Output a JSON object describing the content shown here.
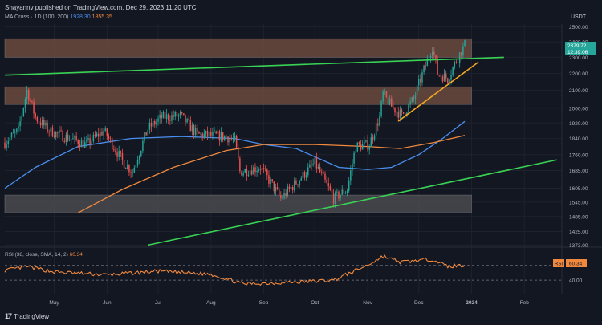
{
  "header": {
    "publisher": "Shayannv published on TradingView.com, Dec 29, 2023 11:20 UTC"
  },
  "legend": {
    "indicator": "MA Cross · 1D (100, 200)",
    "ma100_value": "1928.30",
    "ma200_value": "1855.35",
    "quote_currency": "USDT"
  },
  "rsi_legend": {
    "label": "RSI (38, close, SMA, 14, 2)",
    "value": "60.34"
  },
  "price_badge": {
    "price": "2379.72",
    "countdown": "12:39:06"
  },
  "rsi_badge": {
    "label": "RSI",
    "value": "60.34"
  },
  "footer": {
    "brand": "TradingView"
  },
  "colors": {
    "background": "#131722",
    "up_candle": "#26a69a",
    "down_candle": "#ef5350",
    "ma100": "#4a8ff0",
    "ma200": "#f0883e",
    "rsi": "#f0883e",
    "supply_zone": "#6b4a3e",
    "demand_zone": "#4a4a4f",
    "trendline_green": "#39d353",
    "trendline_orange": "#f5a623"
  },
  "chart_data": {
    "type": "candlestick",
    "symbol_timeframe": "1D",
    "x_axis_labels": [
      "May",
      "Jun",
      "Jul",
      "Aug",
      "Sep",
      "Oct",
      "Nov",
      "Dec",
      "2024",
      "Feb"
    ],
    "x_axis_dates": [
      "2023-05-01",
      "2023-06-01",
      "2023-07-01",
      "2023-08-01",
      "2023-09-01",
      "2023-10-01",
      "2023-11-01",
      "2023-12-01",
      "2024-01-01",
      "2024-02-01"
    ],
    "x_range": [
      "2023-04-02",
      "2024-02-23"
    ],
    "y_ticks": [
      2500.0,
      2400.0,
      2300.0,
      2200.0,
      2100.0,
      2000.0,
      1920.0,
      1840.0,
      1760.0,
      1685.0,
      1605.0,
      1545.0,
      1485.0,
      1425.0,
      1373.0
    ],
    "y_scale": "log",
    "ylim": [
      1365,
      2520
    ],
    "rsi_levels": [
      60.0,
      40.0
    ],
    "rsi_ylim": [
      22,
      84
    ],
    "price_anchors": [
      {
        "date": "2023-04-02",
        "price": 1820
      },
      {
        "date": "2023-04-10",
        "price": 1880
      },
      {
        "date": "2023-04-15",
        "price": 2100
      },
      {
        "date": "2023-04-20",
        "price": 1950
      },
      {
        "date": "2023-04-28",
        "price": 1880
      },
      {
        "date": "2023-05-10",
        "price": 1840
      },
      {
        "date": "2023-05-20",
        "price": 1810
      },
      {
        "date": "2023-05-30",
        "price": 1880
      },
      {
        "date": "2023-06-10",
        "price": 1730
      },
      {
        "date": "2023-06-16",
        "price": 1680
      },
      {
        "date": "2023-06-25",
        "price": 1890
      },
      {
        "date": "2023-07-03",
        "price": 1950
      },
      {
        "date": "2023-07-14",
        "price": 1960
      },
      {
        "date": "2023-07-24",
        "price": 1860
      },
      {
        "date": "2023-08-10",
        "price": 1850
      },
      {
        "date": "2023-08-15",
        "price": 1830
      },
      {
        "date": "2023-08-18",
        "price": 1680
      },
      {
        "date": "2023-08-30",
        "price": 1700
      },
      {
        "date": "2023-09-11",
        "price": 1560
      },
      {
        "date": "2023-09-20",
        "price": 1630
      },
      {
        "date": "2023-10-01",
        "price": 1720
      },
      {
        "date": "2023-10-12",
        "price": 1560
      },
      {
        "date": "2023-10-20",
        "price": 1600
      },
      {
        "date": "2023-10-25",
        "price": 1800
      },
      {
        "date": "2023-11-02",
        "price": 1810
      },
      {
        "date": "2023-11-08",
        "price": 1950
      },
      {
        "date": "2023-11-10",
        "price": 2080
      },
      {
        "date": "2023-11-15",
        "price": 2010
      },
      {
        "date": "2023-11-21",
        "price": 1960
      },
      {
        "date": "2023-11-28",
        "price": 2050
      },
      {
        "date": "2023-12-05",
        "price": 2250
      },
      {
        "date": "2023-12-09",
        "price": 2370
      },
      {
        "date": "2023-12-12",
        "price": 2200
      },
      {
        "date": "2023-12-18",
        "price": 2170
      },
      {
        "date": "2023-12-24",
        "price": 2300
      },
      {
        "date": "2023-12-28",
        "price": 2380
      }
    ],
    "ma100": [
      {
        "date": "2023-04-02",
        "value": 1605
      },
      {
        "date": "2023-04-20",
        "value": 1700
      },
      {
        "date": "2023-05-15",
        "value": 1800
      },
      {
        "date": "2023-06-15",
        "value": 1840
      },
      {
        "date": "2023-07-15",
        "value": 1850
      },
      {
        "date": "2023-08-15",
        "value": 1840
      },
      {
        "date": "2023-09-01",
        "value": 1810
      },
      {
        "date": "2023-09-20",
        "value": 1790
      },
      {
        "date": "2023-10-15",
        "value": 1700
      },
      {
        "date": "2023-11-01",
        "value": 1690
      },
      {
        "date": "2023-11-15",
        "value": 1700
      },
      {
        "date": "2023-12-01",
        "value": 1760
      },
      {
        "date": "2023-12-15",
        "value": 1840
      },
      {
        "date": "2023-12-28",
        "value": 1928.3
      }
    ],
    "ma200": [
      {
        "date": "2023-05-15",
        "value": 1500
      },
      {
        "date": "2023-06-10",
        "value": 1600
      },
      {
        "date": "2023-07-10",
        "value": 1700
      },
      {
        "date": "2023-08-10",
        "value": 1780
      },
      {
        "date": "2023-09-01",
        "value": 1810
      },
      {
        "date": "2023-10-01",
        "value": 1810
      },
      {
        "date": "2023-11-01",
        "value": 1800
      },
      {
        "date": "2023-11-20",
        "value": 1790
      },
      {
        "date": "2023-12-10",
        "value": 1820
      },
      {
        "date": "2023-12-28",
        "value": 1855.35
      }
    ],
    "rsi_anchors": [
      {
        "date": "2023-04-02",
        "value": 53
      },
      {
        "date": "2023-04-15",
        "value": 58
      },
      {
        "date": "2023-05-01",
        "value": 51
      },
      {
        "date": "2023-06-01",
        "value": 47
      },
      {
        "date": "2023-07-01",
        "value": 52
      },
      {
        "date": "2023-08-01",
        "value": 48
      },
      {
        "date": "2023-08-20",
        "value": 35
      },
      {
        "date": "2023-09-15",
        "value": 37
      },
      {
        "date": "2023-10-12",
        "value": 40
      },
      {
        "date": "2023-11-01",
        "value": 60
      },
      {
        "date": "2023-11-10",
        "value": 72
      },
      {
        "date": "2023-11-20",
        "value": 64
      },
      {
        "date": "2023-12-09",
        "value": 68
      },
      {
        "date": "2023-12-18",
        "value": 58
      },
      {
        "date": "2023-12-28",
        "value": 60.34
      }
    ],
    "zones": [
      {
        "name": "supply-zone-upper",
        "low": 2300,
        "high": 2420,
        "from": "2023-04-02",
        "to": "2024-01-01",
        "color": "#6b4a3e"
      },
      {
        "name": "supply-zone-lower",
        "low": 2020,
        "high": 2120,
        "from": "2023-04-02",
        "to": "2024-01-01",
        "color": "#6b4a3e"
      },
      {
        "name": "demand-zone",
        "low": 1500,
        "high": 1575,
        "from": "2023-04-02",
        "to": "2024-01-01",
        "color": "#4a4a4f"
      }
    ],
    "trendlines": [
      {
        "name": "upper-green-trendline",
        "color": "#39d353",
        "points": [
          {
            "date": "2023-04-02",
            "price": 2190
          },
          {
            "date": "2024-01-20",
            "price": 2300
          }
        ]
      },
      {
        "name": "lower-green-trendline",
        "color": "#39d353",
        "points": [
          {
            "date": "2023-06-25",
            "price": 1373
          },
          {
            "date": "2024-02-20",
            "price": 1735
          }
        ]
      },
      {
        "name": "orange-support-line",
        "color": "#f5a623",
        "points": [
          {
            "date": "2023-11-19",
            "price": 1930
          },
          {
            "date": "2024-01-05",
            "price": 2270
          }
        ]
      }
    ]
  }
}
